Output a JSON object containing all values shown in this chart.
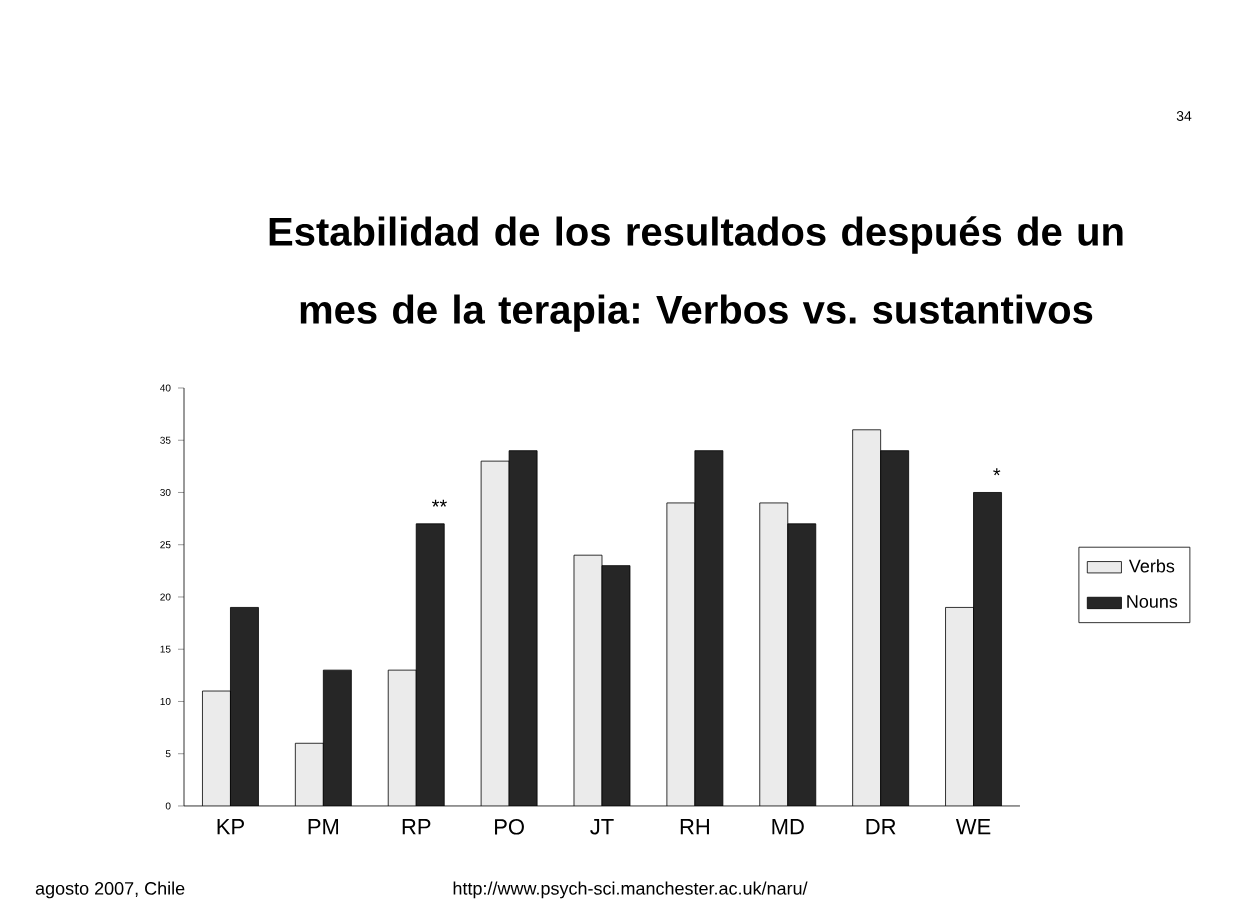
{
  "chart_data": {
    "type": "bar",
    "title": "Estabilidad de los resultados después de un mes de la terapia: Verbos vs. sustantivos",
    "categories": [
      "KP",
      "PM",
      "RP",
      "PO",
      "JT",
      "RH",
      "MD",
      "DR",
      "WE"
    ],
    "series": [
      {
        "name": "Verbs",
        "color": "#ebebeb",
        "values": [
          11,
          6,
          13,
          33,
          24,
          29,
          29,
          36,
          19
        ]
      },
      {
        "name": "Nouns",
        "color": "#262626",
        "values": [
          19,
          13,
          27,
          34,
          23,
          34,
          27,
          34,
          30
        ]
      }
    ],
    "ylim": [
      0,
      40
    ],
    "yticks": [
      0,
      5,
      10,
      15,
      20,
      25,
      30,
      35,
      40
    ],
    "legend": "right",
    "grid": false,
    "annotations": [
      {
        "text": "**",
        "x": "RP",
        "y": 27
      },
      {
        "text": "*",
        "x": "WE",
        "y": 30
      },
      "34",
      "agosto 2007, Chile",
      "http://www.psych-sci.manchester.ac.uk/naru/"
    ]
  }
}
